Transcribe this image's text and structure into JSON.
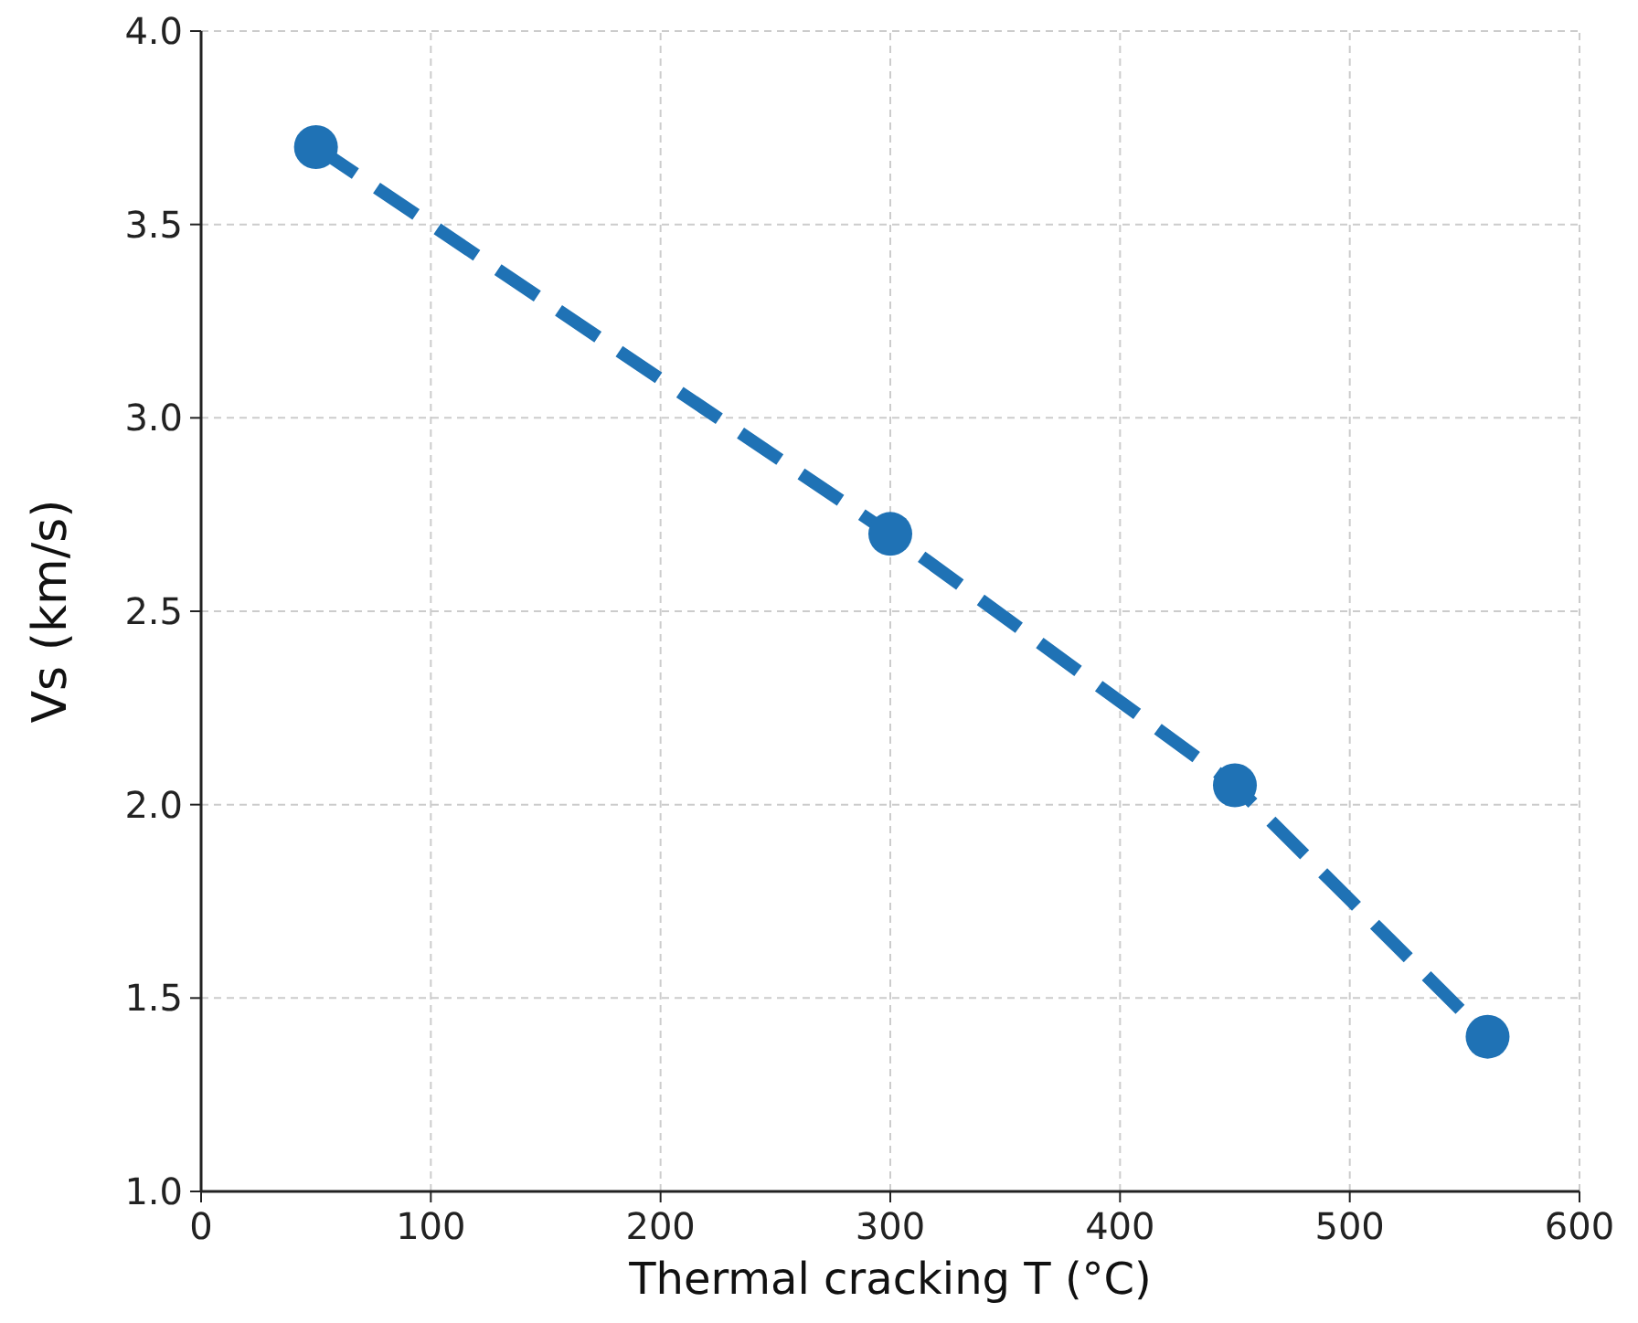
{
  "chart_data": {
    "type": "line",
    "xlabel": "Thermal cracking T (°C)",
    "ylabel": "Vs (km/s)",
    "x": [
      50,
      300,
      450,
      560
    ],
    "series": [
      {
        "color": "#1f72b5",
        "values": [
          3.7,
          2.7,
          2.05,
          1.4
        ]
      }
    ],
    "xlim": [
      0,
      600
    ],
    "xticks": [
      0,
      100,
      200,
      300,
      400,
      500,
      600
    ],
    "ylim": [
      1.0,
      4.0
    ],
    "yticks": [
      {
        "value": 1,
        "label": "1.0"
      },
      {
        "value": 1.5,
        "label": "1.5"
      },
      {
        "value": 2,
        "label": "2.0"
      },
      {
        "value": 2.5,
        "label": "2.5"
      },
      {
        "value": 3,
        "label": "3.0"
      },
      {
        "value": 3.5,
        "label": "3.5"
      },
      {
        "value": 4,
        "label": "4.0"
      }
    ],
    "grid": true,
    "marker": "circle",
    "line_style": "dashed"
  }
}
